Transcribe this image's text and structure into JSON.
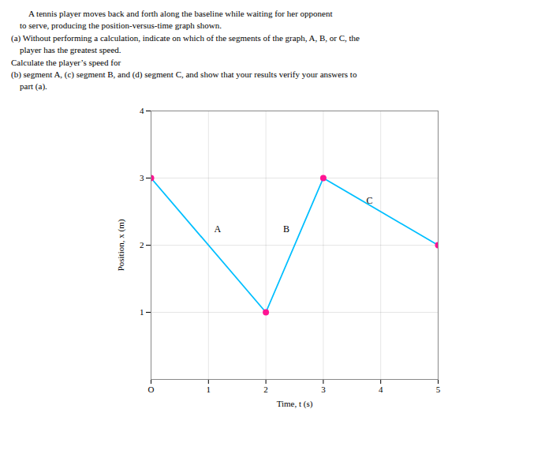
{
  "chart_data": {
    "type": "line",
    "title": "        A tennis player moves back and forth along the baseline while waiting for her opponent\n    to serve, producing the position-versus-time graph shown.\n(a) Without performing a calculation, indicate on which of the segments of the graph, A, B, or C, the\n    player has the greatest speed.\nCalculate the player’s speed for\n(b) segment A, (c) segment B, and (d) segment C, and show that your results verify your answers to\n    part (a).",
    "x": [
      0,
      2,
      3,
      5
    ],
    "values": [
      3,
      1,
      3,
      2
    ],
    "color": "#00BFFF",
    "colors": [
      "#FF1493",
      "#FF1493",
      "#FF1493",
      "#FF1493"
    ],
    "marker": "circle",
    "xlabel": "Time, t (s)",
    "ylabel": "Position, x (m)",
    "xlim": [
      0,
      5
    ],
    "ylim": [
      0,
      4
    ],
    "xticks": [
      {
        "value": 0,
        "label": "O"
      },
      1,
      2,
      3,
      4,
      5
    ],
    "yticks": [
      1,
      2,
      3,
      4
    ],
    "grid": true,
    "annotations": [
      {
        "text": "A",
        "x": 1.1,
        "y": 2.2
      },
      {
        "text": "B",
        "x": 2.3,
        "y": 2.2
      },
      {
        "text": "C",
        "x": 3.75,
        "y": 2.62
      }
    ]
  }
}
